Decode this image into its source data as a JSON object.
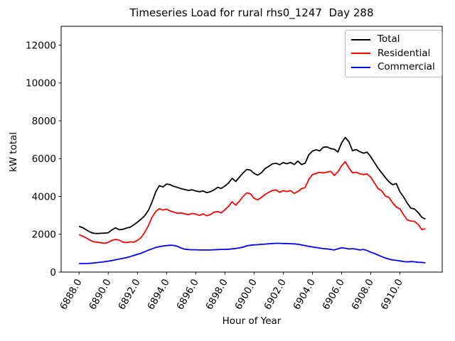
{
  "chart_data": {
    "type": "line",
    "title": "Timeseries Load for rural rhs0_1247  Day 288",
    "xlabel": "Hour of Year",
    "ylabel": "kW total",
    "xlim": [
      6886.77,
      6912.9
    ],
    "ylim": [
      0,
      13000
    ],
    "grid": false,
    "legend_position": "upper right",
    "xticks": {
      "values": [
        6888,
        6890,
        6892,
        6894,
        6896,
        6898,
        6900,
        6902,
        6904,
        6906,
        6908,
        6910
      ],
      "labels": [
        "6888.0",
        "6890.0",
        "6892.0",
        "6894.0",
        "6896.0",
        "6898.0",
        "6900.0",
        "6902.0",
        "6904.0",
        "6906.0",
        "6908.0",
        "6910.0"
      ],
      "rotation_deg": 60
    },
    "yticks": {
      "values": [
        0,
        2000,
        4000,
        6000,
        8000,
        10000,
        12000
      ],
      "labels": [
        "0",
        "2000",
        "4000",
        "6000",
        "8000",
        "10000",
        "12000"
      ]
    },
    "x_start": 6888.0,
    "x_step": 0.25,
    "n_points": 96,
    "series": [
      {
        "name": "Total",
        "color": "#000000",
        "values": [
          2420,
          2350,
          2230,
          2120,
          2050,
          2040,
          2050,
          2060,
          2080,
          2230,
          2340,
          2240,
          2260,
          2330,
          2370,
          2500,
          2640,
          2800,
          2980,
          3260,
          3700,
          4230,
          4570,
          4500,
          4660,
          4620,
          4530,
          4480,
          4410,
          4370,
          4320,
          4350,
          4290,
          4250,
          4290,
          4200,
          4250,
          4350,
          4480,
          4430,
          4550,
          4720,
          4960,
          4790,
          5030,
          5250,
          5430,
          5390,
          5220,
          5130,
          5250,
          5470,
          5590,
          5720,
          5760,
          5680,
          5790,
          5730,
          5800,
          5690,
          5870,
          5690,
          5760,
          6200,
          6400,
          6470,
          6410,
          6600,
          6620,
          6530,
          6500,
          6350,
          6840,
          7120,
          6900,
          6420,
          6480,
          6370,
          6290,
          6340,
          6100,
          5800,
          5500,
          5250,
          5000,
          4780,
          4620,
          4680,
          4250,
          3980,
          3650,
          3380,
          3340,
          3150,
          2900,
          2800
        ]
      },
      {
        "name": "Residential",
        "color": "#ff0000",
        "values": [
          1980,
          1900,
          1800,
          1690,
          1600,
          1580,
          1550,
          1520,
          1570,
          1680,
          1730,
          1690,
          1590,
          1560,
          1600,
          1580,
          1680,
          1820,
          2100,
          2450,
          2900,
          3200,
          3350,
          3280,
          3330,
          3230,
          3170,
          3110,
          3130,
          3080,
          3040,
          3100,
          3070,
          3000,
          3080,
          2980,
          3040,
          3170,
          3200,
          3130,
          3300,
          3480,
          3720,
          3540,
          3760,
          4000,
          4190,
          4140,
          3900,
          3820,
          3950,
          4100,
          4220,
          4310,
          4350,
          4220,
          4310,
          4260,
          4310,
          4160,
          4260,
          4410,
          4470,
          4900,
          5150,
          5220,
          5280,
          5240,
          5290,
          5330,
          5110,
          5300,
          5620,
          5840,
          5520,
          5250,
          5280,
          5200,
          5160,
          5190,
          5020,
          4720,
          4420,
          4300,
          4020,
          3950,
          3660,
          3440,
          3340,
          3040,
          2760,
          2700,
          2680,
          2520,
          2250,
          2290
        ]
      },
      {
        "name": "Commercial",
        "color": "#0000ff",
        "values": [
          450,
          450,
          455,
          465,
          480,
          505,
          525,
          550,
          580,
          610,
          645,
          690,
          730,
          765,
          820,
          880,
          940,
          995,
          1080,
          1160,
          1230,
          1300,
          1340,
          1380,
          1400,
          1420,
          1410,
          1360,
          1270,
          1210,
          1190,
          1180,
          1180,
          1170,
          1170,
          1170,
          1170,
          1180,
          1190,
          1200,
          1200,
          1210,
          1230,
          1250,
          1280,
          1320,
          1390,
          1420,
          1440,
          1450,
          1470,
          1480,
          1500,
          1510,
          1520,
          1520,
          1510,
          1510,
          1500,
          1490,
          1470,
          1440,
          1400,
          1360,
          1330,
          1300,
          1270,
          1240,
          1230,
          1200,
          1170,
          1230,
          1280,
          1260,
          1220,
          1240,
          1210,
          1170,
          1200,
          1140,
          1050,
          990,
          900,
          820,
          740,
          690,
          640,
          620,
          590,
          560,
          540,
          555,
          545,
          520,
          510,
          490
        ]
      }
    ]
  }
}
